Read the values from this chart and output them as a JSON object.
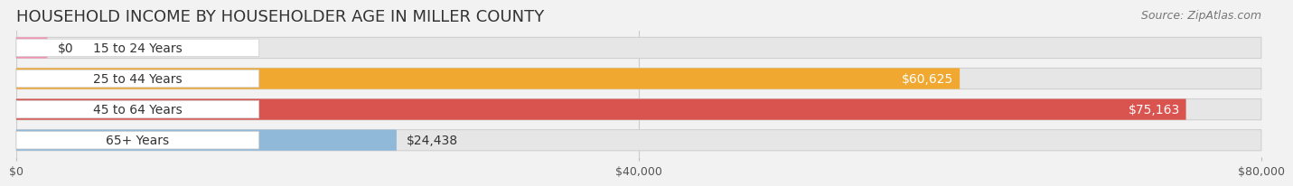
{
  "title": "HOUSEHOLD INCOME BY HOUSEHOLDER AGE IN MILLER COUNTY",
  "source": "Source: ZipAtlas.com",
  "categories": [
    "15 to 24 Years",
    "25 to 44 Years",
    "45 to 64 Years",
    "65+ Years"
  ],
  "values": [
    0,
    60625,
    75163,
    24438
  ],
  "bar_colors": [
    "#f48fb1",
    "#f0a830",
    "#d9534f",
    "#90b8d8"
  ],
  "background_color": "#f2f2f2",
  "bar_bg_color": "#e6e6e6",
  "label_bg_color": "#ffffff",
  "xlim": [
    0,
    80000
  ],
  "xticks": [
    0,
    40000,
    80000
  ],
  "xtick_labels": [
    "$0",
    "$40,000",
    "$80,000"
  ],
  "value_labels": [
    "$0",
    "$60,625",
    "$75,163",
    "$24,438"
  ],
  "value_inside": [
    false,
    true,
    true,
    false
  ],
  "title_fontsize": 13,
  "source_fontsize": 9,
  "label_fontsize": 10,
  "tick_fontsize": 9
}
